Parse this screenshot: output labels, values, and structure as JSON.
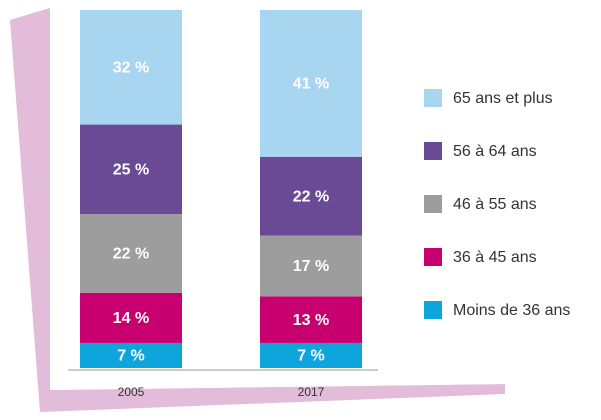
{
  "chart_data": {
    "type": "stacked_bar",
    "categories": [
      "2005",
      "2017"
    ],
    "series": [
      {
        "name": "Moins de 36 ans",
        "color": "#0ea5dc",
        "values": [
          7,
          7
        ],
        "value_labels": [
          "7 %",
          "7 %"
        ]
      },
      {
        "name": "36 à 45 ans",
        "color": "#c8006f",
        "values": [
          14,
          13
        ],
        "value_labels": [
          "14 %",
          "13 %"
        ]
      },
      {
        "name": "46 à 55 ans",
        "color": "#9d9d9d",
        "values": [
          22,
          17
        ],
        "value_labels": [
          "22 %",
          "17 %"
        ]
      },
      {
        "name": "56 à 64 ans",
        "color": "#6a4a95",
        "values": [
          25,
          22
        ],
        "value_labels": [
          "25 %",
          "22 %"
        ]
      },
      {
        "name": "65 ans et plus",
        "color": "#a8d5f0",
        "values": [
          32,
          41
        ],
        "value_labels": [
          "32 %",
          "41 %"
        ]
      }
    ],
    "legend": "right"
  }
}
